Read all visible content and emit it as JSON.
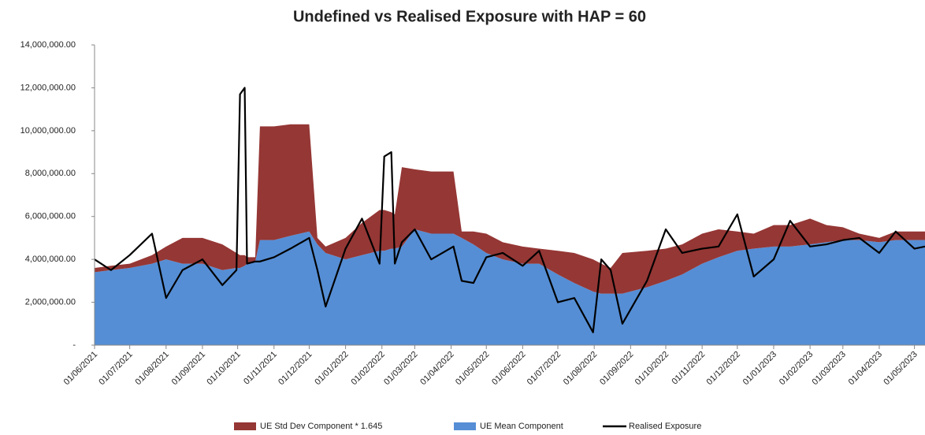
{
  "chart_data": {
    "type": "area",
    "title": "Undefined vs Realised Exposure with HAP = 60",
    "x": [
      "01/06/2021",
      "15/06/2021",
      "01/07/2021",
      "20/07/2021",
      "01/08/2021",
      "15/08/2021",
      "01/09/2021",
      "18/09/2021",
      "30/09/2021",
      "03/10/2021",
      "07/10/2021",
      "09/10/2021",
      "16/10/2021",
      "20/10/2021",
      "01/11/2021",
      "15/11/2021",
      "01/12/2021",
      "08/12/2021",
      "15/12/2021",
      "01/01/2022",
      "15/01/2022",
      "30/01/2022",
      "03/02/2022",
      "09/02/2022",
      "12/02/2022",
      "18/02/2022",
      "01/03/2022",
      "15/03/2022",
      "03/04/2022",
      "10/04/2022",
      "20/04/2022",
      "01/05/2022",
      "15/05/2022",
      "01/06/2022",
      "15/06/2022",
      "01/07/2022",
      "15/07/2022",
      "31/07/2022",
      "07/08/2022",
      "15/08/2022",
      "25/08/2022",
      "15/09/2022",
      "01/10/2022",
      "15/10/2022",
      "01/11/2022",
      "15/11/2022",
      "01/12/2022",
      "15/12/2022",
      "01/01/2023",
      "15/01/2023",
      "01/02/2023",
      "15/02/2023",
      "01/03/2023",
      "15/03/2023",
      "01/04/2023",
      "15/04/2023",
      "01/05/2023",
      "10/05/2023"
    ],
    "series": [
      {
        "name": "UE Std Dev Component * 1.645",
        "color": "#953735",
        "stacked_on": 1,
        "values": [
          200000,
          200000,
          200000,
          400000,
          600000,
          1200000,
          1200000,
          1200000,
          700000,
          600000,
          500000,
          300000,
          200000,
          5300000,
          5300000,
          5200000,
          5000000,
          300000,
          300000,
          1000000,
          1500000,
          1900000,
          1900000,
          1700000,
          1600000,
          3700000,
          2800000,
          2900000,
          2900000,
          300000,
          600000,
          900000,
          800000,
          800000,
          700000,
          1100000,
          1400000,
          1500000,
          1400000,
          1200000,
          1900000,
          1700000,
          1500000,
          1400000,
          1400000,
          1300000,
          900000,
          700000,
          1000000,
          1000000,
          1200000,
          800000,
          600000,
          300000,
          200000,
          400000,
          400000,
          400000
        ]
      },
      {
        "name": "UE Mean Component",
        "color": "#558ed5",
        "values": [
          3400000,
          3500000,
          3600000,
          3800000,
          4000000,
          3800000,
          3800000,
          3500000,
          3600000,
          3600000,
          3700000,
          3800000,
          3900000,
          4900000,
          4900000,
          5100000,
          5300000,
          4700000,
          4300000,
          4000000,
          4200000,
          4400000,
          4400000,
          4500000,
          4500000,
          4600000,
          5400000,
          5200000,
          5200000,
          5000000,
          4700000,
          4300000,
          4000000,
          3800000,
          3800000,
          3300000,
          2900000,
          2500000,
          2400000,
          2400000,
          2400000,
          2700000,
          3000000,
          3300000,
          3800000,
          4100000,
          4400000,
          4500000,
          4600000,
          4600000,
          4700000,
          4800000,
          4900000,
          4900000,
          4800000,
          4900000,
          4900000,
          4900000
        ]
      },
      {
        "name": "Realised Exposure",
        "color": "#000000",
        "line": true,
        "values": [
          4000000,
          3500000,
          4200000,
          5200000,
          2200000,
          3500000,
          4000000,
          2800000,
          3500000,
          11700000,
          12000000,
          3800000,
          3900000,
          3900000,
          4100000,
          4500000,
          5000000,
          3500000,
          1800000,
          4500000,
          5900000,
          3800000,
          8800000,
          9000000,
          3800000,
          4800000,
          5400000,
          4000000,
          4600000,
          3000000,
          2900000,
          4100000,
          4300000,
          3700000,
          4400000,
          2000000,
          2200000,
          600000,
          4000000,
          3500000,
          1000000,
          3000000,
          5400000,
          4300000,
          4500000,
          4600000,
          6100000,
          3200000,
          4000000,
          5800000,
          4600000,
          4700000,
          4900000,
          5000000,
          4300000,
          5300000,
          4500000,
          4600000
        ]
      }
    ],
    "xlim": [
      "01/06/2021",
      "10/05/2023"
    ],
    "xticks": [
      "01/06/2021",
      "01/07/2021",
      "01/08/2021",
      "01/09/2021",
      "01/10/2021",
      "01/11/2021",
      "01/12/2021",
      "01/01/2022",
      "01/02/2022",
      "01/03/2022",
      "01/04/2022",
      "01/05/2022",
      "01/06/2022",
      "01/07/2022",
      "01/08/2022",
      "01/09/2022",
      "01/10/2022",
      "01/11/2022",
      "01/12/2022",
      "01/01/2023",
      "01/02/2023",
      "01/03/2023",
      "01/04/2023",
      "01/05/2023"
    ],
    "ylim": [
      0,
      14000000
    ],
    "yticks": [
      {
        "value": 0,
        "label": "-"
      },
      {
        "value": 2000000,
        "label": "2,000,000.00"
      },
      {
        "value": 4000000,
        "label": "4,000,000.00"
      },
      {
        "value": 6000000,
        "label": "6,000,000.00"
      },
      {
        "value": 8000000,
        "label": "8,000,000.00"
      },
      {
        "value": 10000000,
        "label": "10,000,000.00"
      },
      {
        "value": 12000000,
        "label": "12,000,000.00"
      },
      {
        "value": 14000000,
        "label": "14,000,000.00"
      }
    ],
    "legend": "bottom"
  }
}
